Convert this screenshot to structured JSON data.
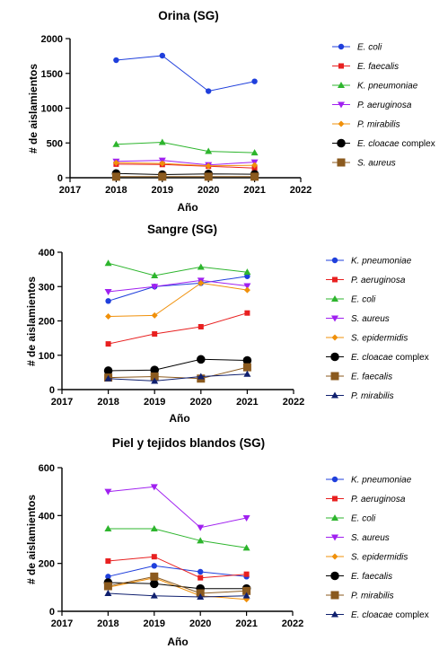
{
  "chart_data": [
    {
      "type": "line",
      "title": "Orina (SG)",
      "xlabel": "Año",
      "ylabel": "# de aislamientos",
      "xlim": [
        2017,
        2022
      ],
      "ylim": [
        0,
        2000
      ],
      "xticks": [
        "2017",
        "2018",
        "2019",
        "2020",
        "2021",
        "2022"
      ],
      "yticks": [
        "0",
        "500",
        "1000",
        "1500",
        "2000"
      ],
      "legend_position": "right",
      "x": [
        2018,
        2019,
        2020,
        2021
      ],
      "series": [
        {
          "name": "E. coli",
          "italic": true,
          "suffix": "",
          "color": "#1f3fdc",
          "marker": "circle",
          "values": [
            1690,
            1755,
            1245,
            1385
          ]
        },
        {
          "name": "E. faecalis",
          "italic": true,
          "suffix": "",
          "color": "#e82020",
          "marker": "square",
          "values": [
            195,
            190,
            165,
            140
          ]
        },
        {
          "name": "K. pneumoniae",
          "italic": true,
          "suffix": "",
          "color": "#2db52d",
          "marker": "triangle",
          "values": [
            480,
            510,
            380,
            360
          ]
        },
        {
          "name": "P. aeruginosa",
          "italic": true,
          "suffix": "",
          "color": "#a020f0",
          "marker": "triangle-down",
          "values": [
            235,
            250,
            185,
            225
          ]
        },
        {
          "name": "P. mirabilis",
          "italic": true,
          "suffix": "",
          "color": "#f0900a",
          "marker": "diamond",
          "values": [
            215,
            205,
            170,
            180
          ]
        },
        {
          "name": "E. cloacae",
          "italic": true,
          "suffix": " complex",
          "color": "#000000",
          "marker": "circle-big",
          "values": [
            60,
            45,
            55,
            50
          ]
        },
        {
          "name": "S. aureus",
          "italic": true,
          "suffix": "",
          "color": "#8b5a1e",
          "marker": "square-big",
          "values": [
            15,
            15,
            15,
            15
          ]
        }
      ]
    },
    {
      "type": "line",
      "title": "Sangre (SG)",
      "xlabel": "Año",
      "ylabel": "# de aislamientos",
      "xlim": [
        2017,
        2022
      ],
      "ylim": [
        0,
        400
      ],
      "xticks": [
        "2017",
        "2018",
        "2019",
        "2020",
        "2021",
        "2022"
      ],
      "yticks": [
        "0",
        "100",
        "200",
        "300",
        "400"
      ],
      "legend_position": "right",
      "x": [
        2018,
        2019,
        2020,
        2021
      ],
      "series": [
        {
          "name": "K. pneumoniae",
          "italic": true,
          "suffix": "",
          "color": "#1f3fdc",
          "marker": "circle",
          "values": [
            258,
            300,
            310,
            330
          ]
        },
        {
          "name": "P. aeruginosa",
          "italic": true,
          "suffix": "",
          "color": "#e82020",
          "marker": "square",
          "values": [
            133,
            162,
            183,
            223
          ]
        },
        {
          "name": "E. coli",
          "italic": true,
          "suffix": "",
          "color": "#2db52d",
          "marker": "triangle",
          "values": [
            368,
            332,
            357,
            342
          ]
        },
        {
          "name": "S. aureus",
          "italic": true,
          "suffix": "",
          "color": "#a020f0",
          "marker": "triangle-down",
          "values": [
            285,
            300,
            318,
            302
          ]
        },
        {
          "name": "S. epidermidis",
          "italic": true,
          "suffix": "",
          "color": "#f0900a",
          "marker": "diamond",
          "values": [
            213,
            216,
            310,
            290
          ]
        },
        {
          "name": "E. cloacae",
          "italic": true,
          "suffix": " complex",
          "color": "#000000",
          "marker": "circle-big",
          "values": [
            55,
            57,
            88,
            85
          ]
        },
        {
          "name": "E. faecalis",
          "italic": true,
          "suffix": "",
          "color": "#8b5a1e",
          "marker": "square-big",
          "values": [
            35,
            38,
            32,
            65
          ]
        },
        {
          "name": "P. mirabilis",
          "italic": true,
          "suffix": "",
          "color": "#0f1f6e",
          "marker": "triangle",
          "values": [
            32,
            25,
            38,
            45
          ]
        }
      ]
    },
    {
      "type": "line",
      "title": "Piel y tejidos blandos (SG)",
      "xlabel": "Año",
      "ylabel": "# de aislamientos",
      "xlim": [
        2017,
        2022
      ],
      "ylim": [
        0,
        600
      ],
      "xticks": [
        "2017",
        "2018",
        "2019",
        "2020",
        "2021",
        "2022"
      ],
      "yticks": [
        "0",
        "200",
        "400",
        "600"
      ],
      "legend_position": "right",
      "x": [
        2018,
        2019,
        2020,
        2021
      ],
      "series": [
        {
          "name": "K. pneumoniae",
          "italic": true,
          "suffix": "",
          "color": "#1f3fdc",
          "marker": "circle",
          "values": [
            145,
            190,
            165,
            145
          ]
        },
        {
          "name": "P. aeruginosa",
          "italic": true,
          "suffix": "",
          "color": "#e82020",
          "marker": "square",
          "values": [
            210,
            228,
            140,
            155
          ]
        },
        {
          "name": "E. coli",
          "italic": true,
          "suffix": "",
          "color": "#2db52d",
          "marker": "triangle",
          "values": [
            345,
            345,
            295,
            265
          ]
        },
        {
          "name": "S. aureus",
          "italic": true,
          "suffix": "",
          "color": "#a020f0",
          "marker": "triangle-down",
          "values": [
            500,
            520,
            350,
            390
          ]
        },
        {
          "name": "S. epidermidis",
          "italic": true,
          "suffix": "",
          "color": "#f0900a",
          "marker": "diamond",
          "values": [
            100,
            140,
            65,
            50
          ]
        },
        {
          "name": "E. faecalis",
          "italic": true,
          "suffix": "",
          "color": "#000000",
          "marker": "circle-big",
          "values": [
            120,
            115,
            95,
            95
          ]
        },
        {
          "name": "P. mirabilis",
          "italic": true,
          "suffix": "",
          "color": "#8b5a1e",
          "marker": "square-big",
          "values": [
            105,
            145,
            75,
            85
          ]
        },
        {
          "name": "E. cloacae",
          "italic": true,
          "suffix": " complex",
          "color": "#0f1f6e",
          "marker": "triangle",
          "values": [
            75,
            65,
            60,
            65
          ]
        }
      ]
    }
  ]
}
